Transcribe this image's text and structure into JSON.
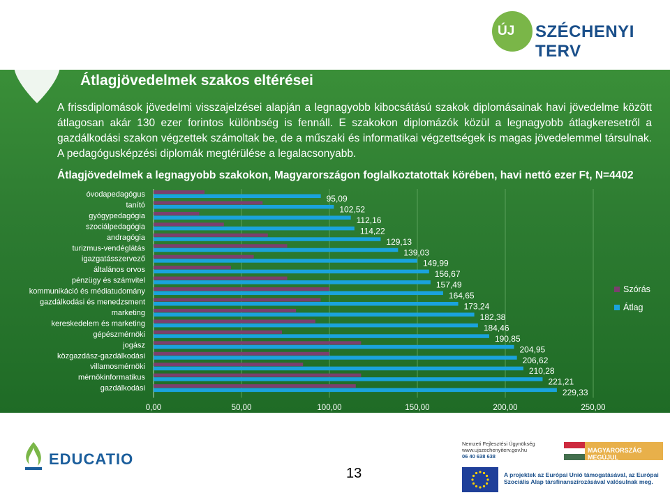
{
  "header": {
    "brand_prefix": "ÚJ",
    "brand_name": "SZÉCHENYI TERV"
  },
  "slide": {
    "title": "Átlagjövedelmek szakos eltérései",
    "paragraph": "A frissdiplomások jövedelmi visszajelzései alapján a legnagyobb kibocsátású szakok diplomásainak havi jövedelme között átlagosan akár 130 ezer forintos különbség is fennáll. E szakokon diplomázók közül a legnagyobb átlagkeresetről a gazdálkodási szakon végzettek számoltak be, de a műszaki és informatikai végzettségek is magas jövedelemmel társulnak. A pedagógusképzési diplomák megtérülése a legalacsonyabb.",
    "page_number": "13"
  },
  "chart_data": {
    "type": "bar",
    "orientation": "horizontal",
    "title": "Átlagjövedelmek a legnagyobb szakokon, Magyarországon foglalkoztatottak körében, havi nettó ezer Ft, N=4402",
    "categories": [
      "óvodapedagógus",
      "tanító",
      "gyógypedagógia",
      "szociálpedagógia",
      "andragógia",
      "turizmus-vendéglátás",
      "igazgatásszervező",
      "általános orvos",
      "pénzügy és számvitel",
      "kommunikáció és médiatudomány",
      "gazdálkodási és menedzsment",
      "marketing",
      "kereskedelem és marketing",
      "gépészmérnöki",
      "jogász",
      "közgazdász-gazdálkodási",
      "villamosmérnöki",
      "mérnökinformatikus",
      "gazdálkodási"
    ],
    "series": [
      {
        "name": "Szórás",
        "color": "#7b3f6e",
        "values": [
          29,
          62,
          26,
          40,
          65,
          76,
          57,
          44,
          76,
          100,
          95,
          81,
          92,
          73,
          118,
          100,
          85,
          118,
          115
        ]
      },
      {
        "name": "Átlag",
        "color": "#1aa3dd",
        "values": [
          95.09,
          102.52,
          112.16,
          114.22,
          129.13,
          139.03,
          149.99,
          156.67,
          157.49,
          164.65,
          173.24,
          182.38,
          184.46,
          190.85,
          204.95,
          206.62,
          210.28,
          221.21,
          229.33
        ]
      }
    ],
    "value_labels": [
      "95,09",
      "102,52",
      "112,16",
      "114,22",
      "129,13",
      "139,03",
      "149,99",
      "156,67",
      "157,49",
      "164,65",
      "173,24",
      "182,38",
      "184,46",
      "190,85",
      "204,95",
      "206,62",
      "210,28",
      "221,21",
      "229,33"
    ],
    "xlim": [
      0,
      250
    ],
    "x_ticks": [
      "0,00",
      "50,00",
      "100,00",
      "150,00",
      "200,00",
      "250,00"
    ],
    "legend_position": "right",
    "grid": true
  },
  "footer": {
    "educatio": "EDUCATIO",
    "nfu_line1": "Nemzeti Fejlesztési Ügynökség",
    "nfu_line2": "www.ujszechenyiterv.gov.hu",
    "nfu_line3": "06 40 638 638",
    "mm_banner": "MAGYARORSZÁG MEGÚJUL",
    "eu_text": "A projektek az Európai Unió támogatásával, az Európai Szociális Alap társfinanszírozásával valósulnak meg."
  }
}
